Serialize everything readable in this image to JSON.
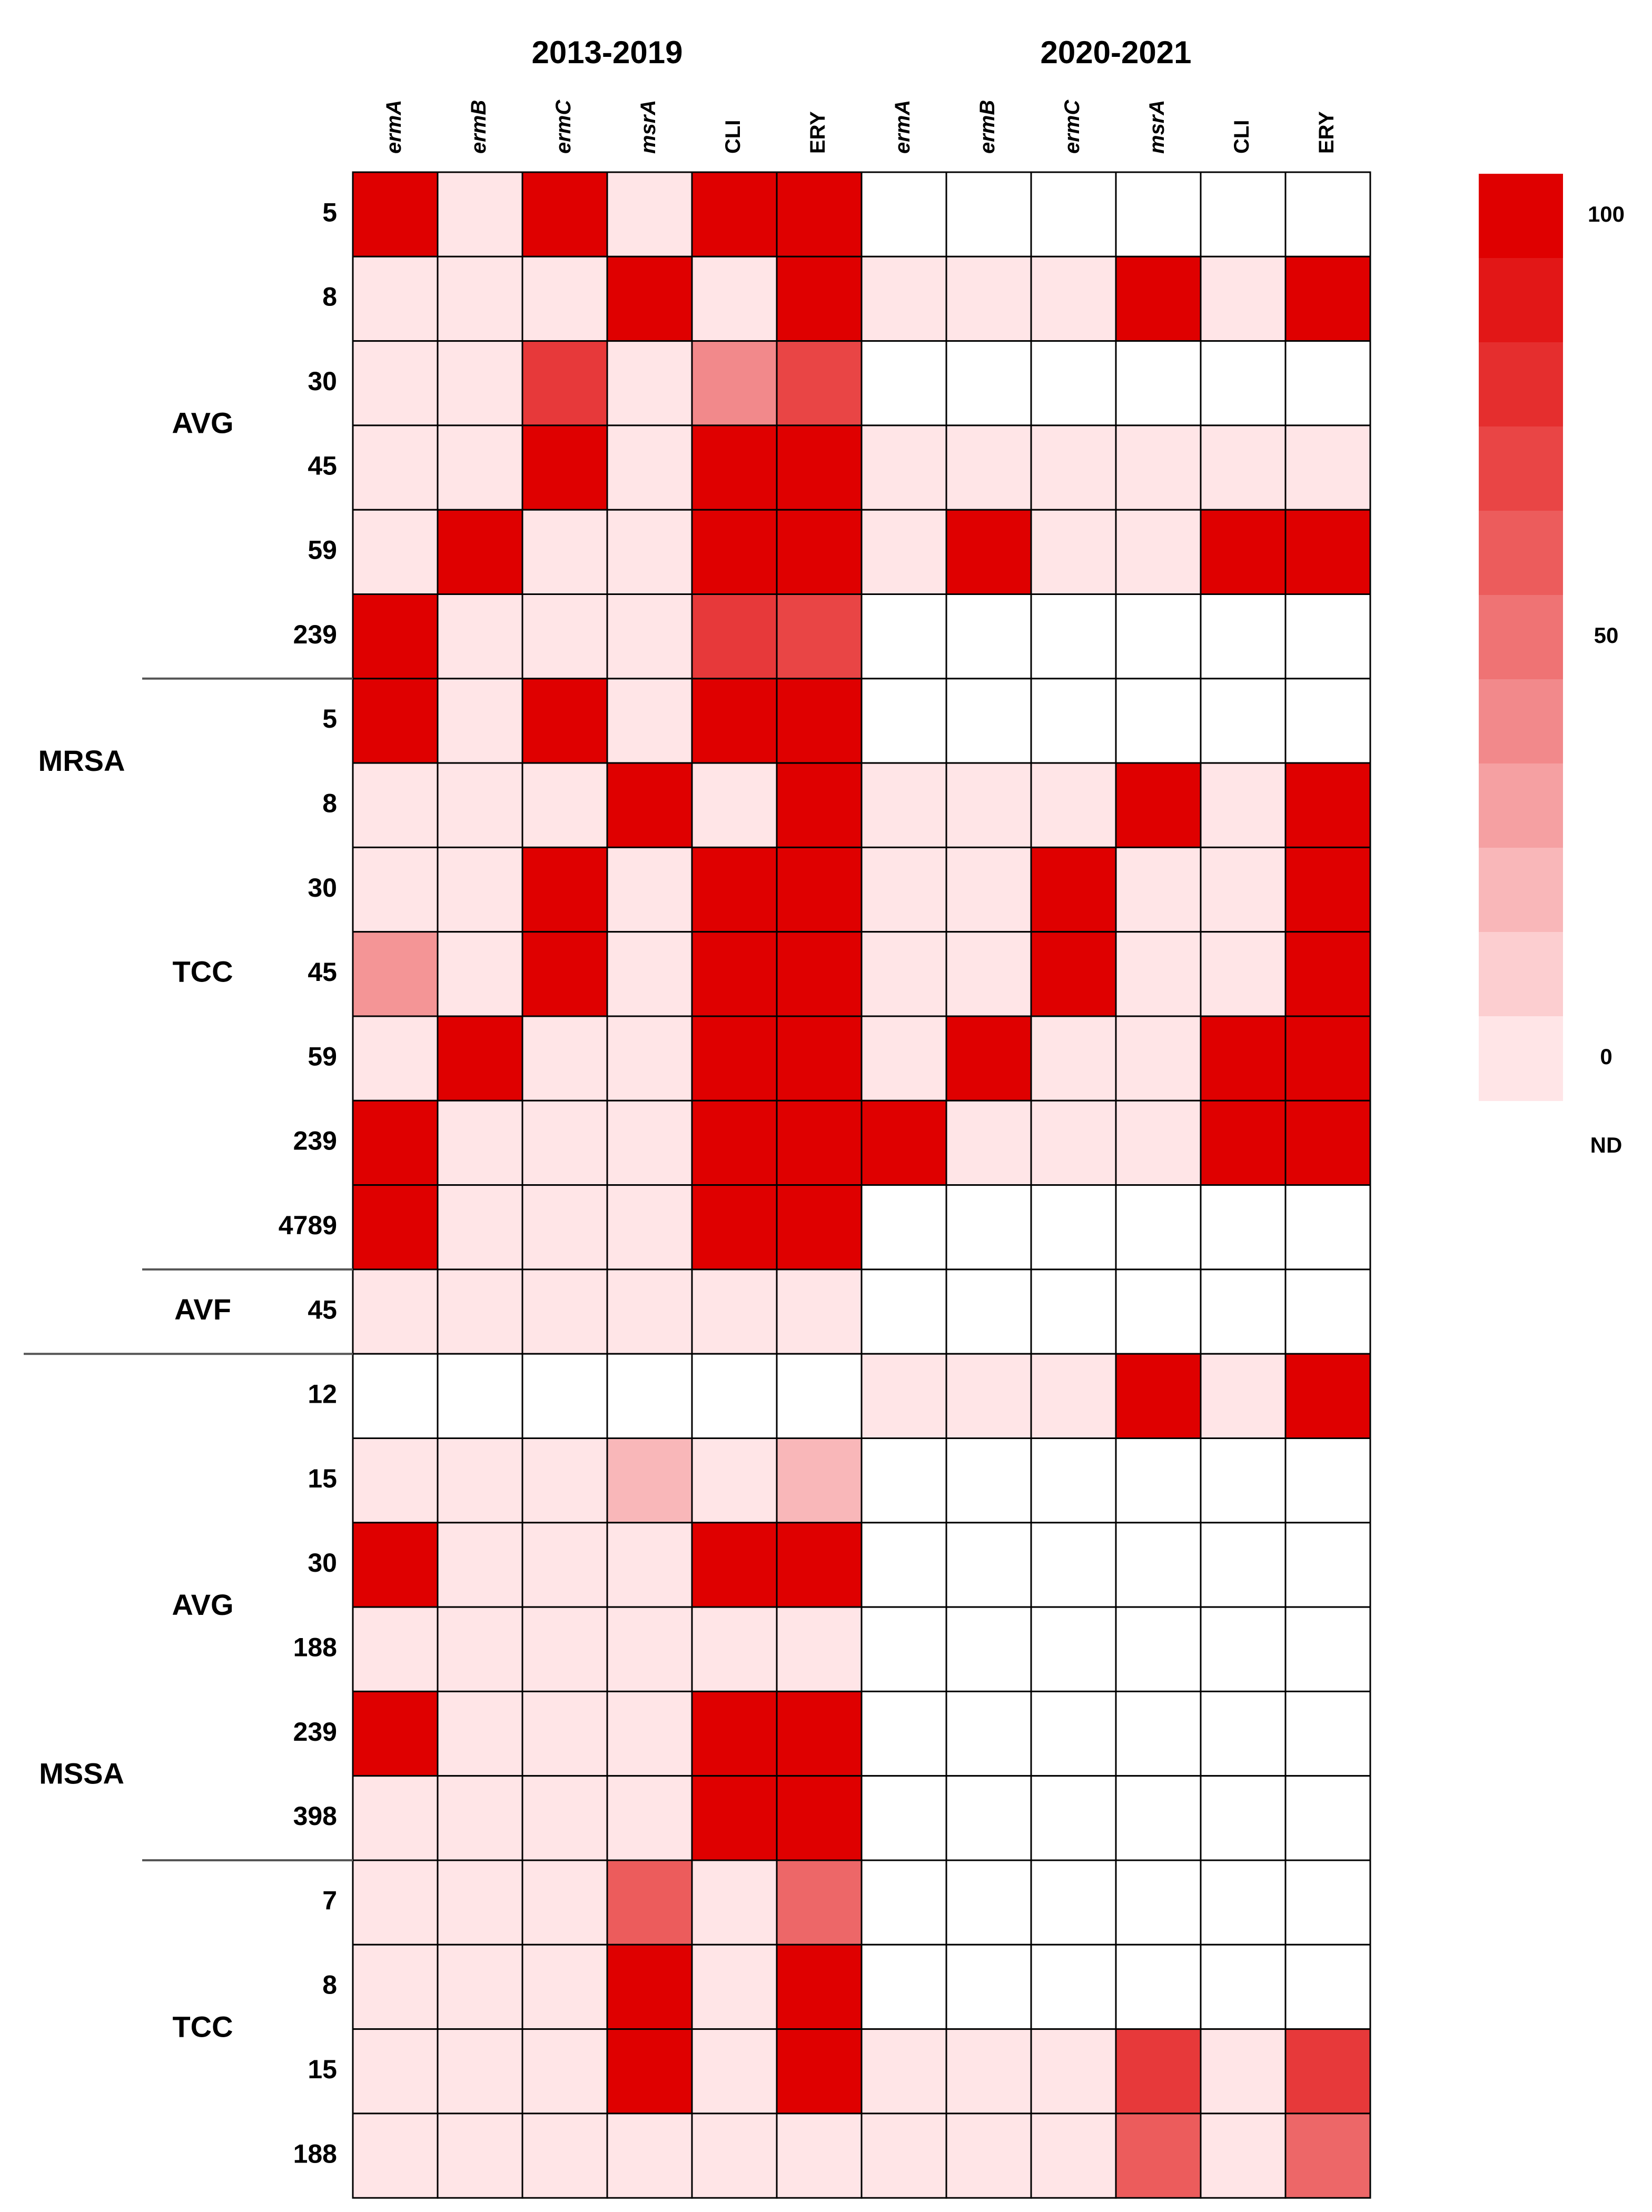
{
  "chart_data": {
    "type": "heatmap",
    "period_labels": [
      "2013-2019",
      "2020-2021"
    ],
    "columns": [
      {
        "label": "ermA",
        "italic": true
      },
      {
        "label": "ermB",
        "italic": true
      },
      {
        "label": "ermC",
        "italic": true
      },
      {
        "label": "msrA",
        "italic": true
      },
      {
        "label": "CLI",
        "italic": false
      },
      {
        "label": "ERY",
        "italic": false
      },
      {
        "label": "ermA",
        "italic": true
      },
      {
        "label": "ermB",
        "italic": true
      },
      {
        "label": "ermC",
        "italic": true
      },
      {
        "label": "msrA",
        "italic": true
      },
      {
        "label": "CLI",
        "italic": false
      },
      {
        "label": "ERY",
        "italic": false
      }
    ],
    "groups": [
      {
        "label": "MRSA",
        "sub_label": "AVG"
      },
      {
        "label": "MRSA",
        "sub_label": "TCC"
      },
      {
        "label": "MRSA",
        "sub_label": "AVF"
      },
      {
        "label": "MSSA",
        "sub_label": "AVG"
      },
      {
        "label": "MSSA",
        "sub_label": "TCC"
      }
    ],
    "top_labels": [
      "MRSA",
      "MSSA"
    ],
    "rows": [
      {
        "label": "5",
        "values": [
          100,
          0,
          100,
          0,
          100,
          100,
          null,
          null,
          null,
          null,
          null,
          null
        ]
      },
      {
        "label": "8",
        "values": [
          0,
          0,
          0,
          100,
          0,
          100,
          0,
          0,
          0,
          100,
          0,
          100
        ]
      },
      {
        "label": "30",
        "values": [
          0,
          0,
          75,
          0,
          40,
          70,
          null,
          null,
          null,
          null,
          null,
          null
        ]
      },
      {
        "label": "45",
        "values": [
          0,
          0,
          100,
          0,
          100,
          100,
          0,
          0,
          0,
          0,
          0,
          0
        ]
      },
      {
        "label": "59",
        "values": [
          0,
          100,
          0,
          0,
          100,
          100,
          0,
          100,
          0,
          0,
          100,
          100
        ]
      },
      {
        "label": "239",
        "values": [
          100,
          0,
          0,
          0,
          75,
          70,
          null,
          null,
          null,
          null,
          null,
          null
        ]
      },
      {
        "label": "5",
        "values": [
          100,
          0,
          100,
          0,
          100,
          100,
          null,
          null,
          null,
          null,
          null,
          null
        ]
      },
      {
        "label": "8",
        "values": [
          0,
          0,
          0,
          100,
          0,
          100,
          0,
          0,
          0,
          100,
          0,
          100
        ]
      },
      {
        "label": "30",
        "values": [
          0,
          0,
          100,
          0,
          100,
          100,
          0,
          0,
          100,
          0,
          0,
          100
        ]
      },
      {
        "label": "45",
        "values": [
          35,
          0,
          100,
          0,
          100,
          100,
          0,
          0,
          100,
          0,
          0,
          100
        ]
      },
      {
        "label": "59",
        "values": [
          0,
          100,
          0,
          0,
          100,
          100,
          0,
          100,
          0,
          0,
          100,
          100
        ]
      },
      {
        "label": "239",
        "values": [
          100,
          0,
          0,
          0,
          100,
          100,
          100,
          0,
          0,
          0,
          100,
          100
        ]
      },
      {
        "label": "4789",
        "values": [
          100,
          0,
          0,
          0,
          100,
          100,
          null,
          null,
          null,
          null,
          null,
          null
        ]
      },
      {
        "label": "45",
        "values": [
          0,
          0,
          0,
          0,
          0,
          0,
          null,
          null,
          null,
          null,
          null,
          null
        ]
      },
      {
        "label": "12",
        "values": [
          null,
          null,
          null,
          null,
          null,
          null,
          0,
          0,
          0,
          100,
          0,
          100
        ]
      },
      {
        "label": "15",
        "values": [
          0,
          0,
          0,
          20,
          0,
          20,
          null,
          null,
          null,
          null,
          null,
          null
        ]
      },
      {
        "label": "30",
        "values": [
          100,
          0,
          0,
          0,
          100,
          100,
          null,
          null,
          null,
          null,
          null,
          null
        ]
      },
      {
        "label": "188",
        "values": [
          0,
          0,
          0,
          0,
          0,
          0,
          null,
          null,
          null,
          null,
          null,
          null
        ]
      },
      {
        "label": "239",
        "values": [
          100,
          0,
          0,
          0,
          100,
          100,
          null,
          null,
          null,
          null,
          null,
          null
        ]
      },
      {
        "label": "398",
        "values": [
          0,
          0,
          0,
          0,
          100,
          100,
          null,
          null,
          null,
          null,
          null,
          null
        ]
      },
      {
        "label": "7",
        "values": [
          0,
          0,
          0,
          60,
          0,
          55,
          null,
          null,
          null,
          null,
          null,
          null
        ]
      },
      {
        "label": "8",
        "values": [
          0,
          0,
          0,
          100,
          0,
          100,
          null,
          null,
          null,
          null,
          null,
          null
        ]
      },
      {
        "label": "15",
        "values": [
          0,
          0,
          0,
          100,
          0,
          100,
          0,
          0,
          0,
          75,
          0,
          75
        ]
      },
      {
        "label": "188",
        "values": [
          0,
          0,
          0,
          0,
          0,
          0,
          0,
          0,
          0,
          60,
          0,
          55
        ]
      }
    ],
    "legend": {
      "min": 0,
      "max": 100,
      "steps": 11,
      "tick_labels": [
        "100",
        "50",
        "0"
      ],
      "nd_label": "ND",
      "low_color": "#ffe5e7",
      "high_color": "#df0000",
      "nd_color": "#ffffff"
    }
  }
}
